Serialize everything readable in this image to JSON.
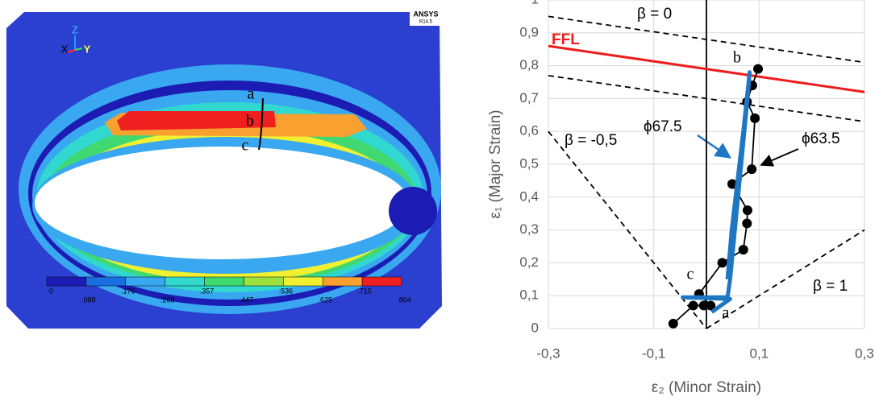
{
  "contour_plot": {
    "logo": "ANSYS",
    "version": "R14.5",
    "triad": [
      "Z",
      "X",
      "Y"
    ],
    "labels": [
      "a",
      "b",
      "c"
    ],
    "legend_values": [
      "0",
      ".088",
      ".176",
      ".268",
      ".357",
      ".447",
      ".536",
      ".625",
      ".715",
      ".804"
    ]
  },
  "chart_data": {
    "type": "line",
    "xlabel": "ε₂ (Minor Strain)",
    "ylabel": "ε₁ (Major Strain)",
    "xlim": [
      -0.3,
      0.3
    ],
    "ylim": [
      0,
      1
    ],
    "xticks": [
      {
        "value": -0.3,
        "label": "-0,3"
      },
      {
        "value": -0.1,
        "label": "-0,1"
      },
      {
        "value": 0.1,
        "label": "0,1"
      },
      {
        "value": 0.3,
        "label": "0,3"
      }
    ],
    "yticks": [
      0,
      {
        "value": 0.1,
        "label": "0,1"
      },
      {
        "value": 0.2,
        "label": "0,2"
      },
      {
        "value": 0.3,
        "label": "0,3"
      },
      {
        "value": 0.4,
        "label": "0,4"
      },
      {
        "value": 0.5,
        "label": "0,5"
      },
      {
        "value": 0.6,
        "label": "0,6"
      },
      {
        "value": 0.7,
        "label": "0,7"
      },
      {
        "value": 0.8,
        "label": "0,8"
      },
      {
        "value": 0.9,
        "label": "0,9"
      },
      1
    ],
    "grid": true,
    "annotations": [
      "a",
      "b",
      "c"
    ],
    "series": [
      {
        "color": "#000000",
        "dash": true,
        "x": [
          -0.3,
          0.3
        ],
        "values": [
          0.95,
          0.81
        ]
      },
      {
        "color": "#000000",
        "dash": true,
        "x": [
          -0.3,
          0.3
        ],
        "values": [
          0.77,
          0.63
        ]
      },
      {
        "name": "β = 0",
        "color": "#000000",
        "x": [
          0,
          0
        ],
        "values": [
          0,
          1
        ]
      },
      {
        "name": "β = -0,5",
        "color": "#000000",
        "dash": true,
        "x": [
          -0.3,
          0
        ],
        "values": [
          0.6,
          0
        ]
      },
      {
        "name": "β = 1",
        "color": "#000000",
        "dash": true,
        "x": [
          0,
          0.3
        ],
        "values": [
          0,
          0.3
        ]
      },
      {
        "name": "FFL",
        "color": "#ee1c1c",
        "x": [
          -0.3,
          0.3
        ],
        "values": [
          0.86,
          0.72
        ]
      },
      {
        "name": "ϕ63.5",
        "color": "#000000",
        "markers": true,
        "x": [
          -0.063,
          -0.025,
          -0.005,
          0.008,
          -0.014,
          0.03,
          0.07,
          0.077,
          0.078,
          0.049,
          0.086,
          0.092,
          0.077,
          0.087,
          0.098
        ],
        "values": [
          0.015,
          0.07,
          0.07,
          0.07,
          0.105,
          0.2,
          0.24,
          0.32,
          0.36,
          0.44,
          0.485,
          0.64,
          0.69,
          0.74,
          0.79
        ]
      },
      {
        "name": "ϕ67.5",
        "color": "#1f77c4",
        "x": [
          0.01,
          0.045,
          -0.045,
          0.04,
          0.045,
          0.06,
          0.078,
          0.082,
          0.07,
          0.048,
          0.04
        ],
        "values": [
          0.05,
          0.09,
          0.095,
          0.095,
          0.15,
          0.4,
          0.7,
          0.78,
          0.6,
          0.3,
          0.15
        ]
      }
    ]
  }
}
